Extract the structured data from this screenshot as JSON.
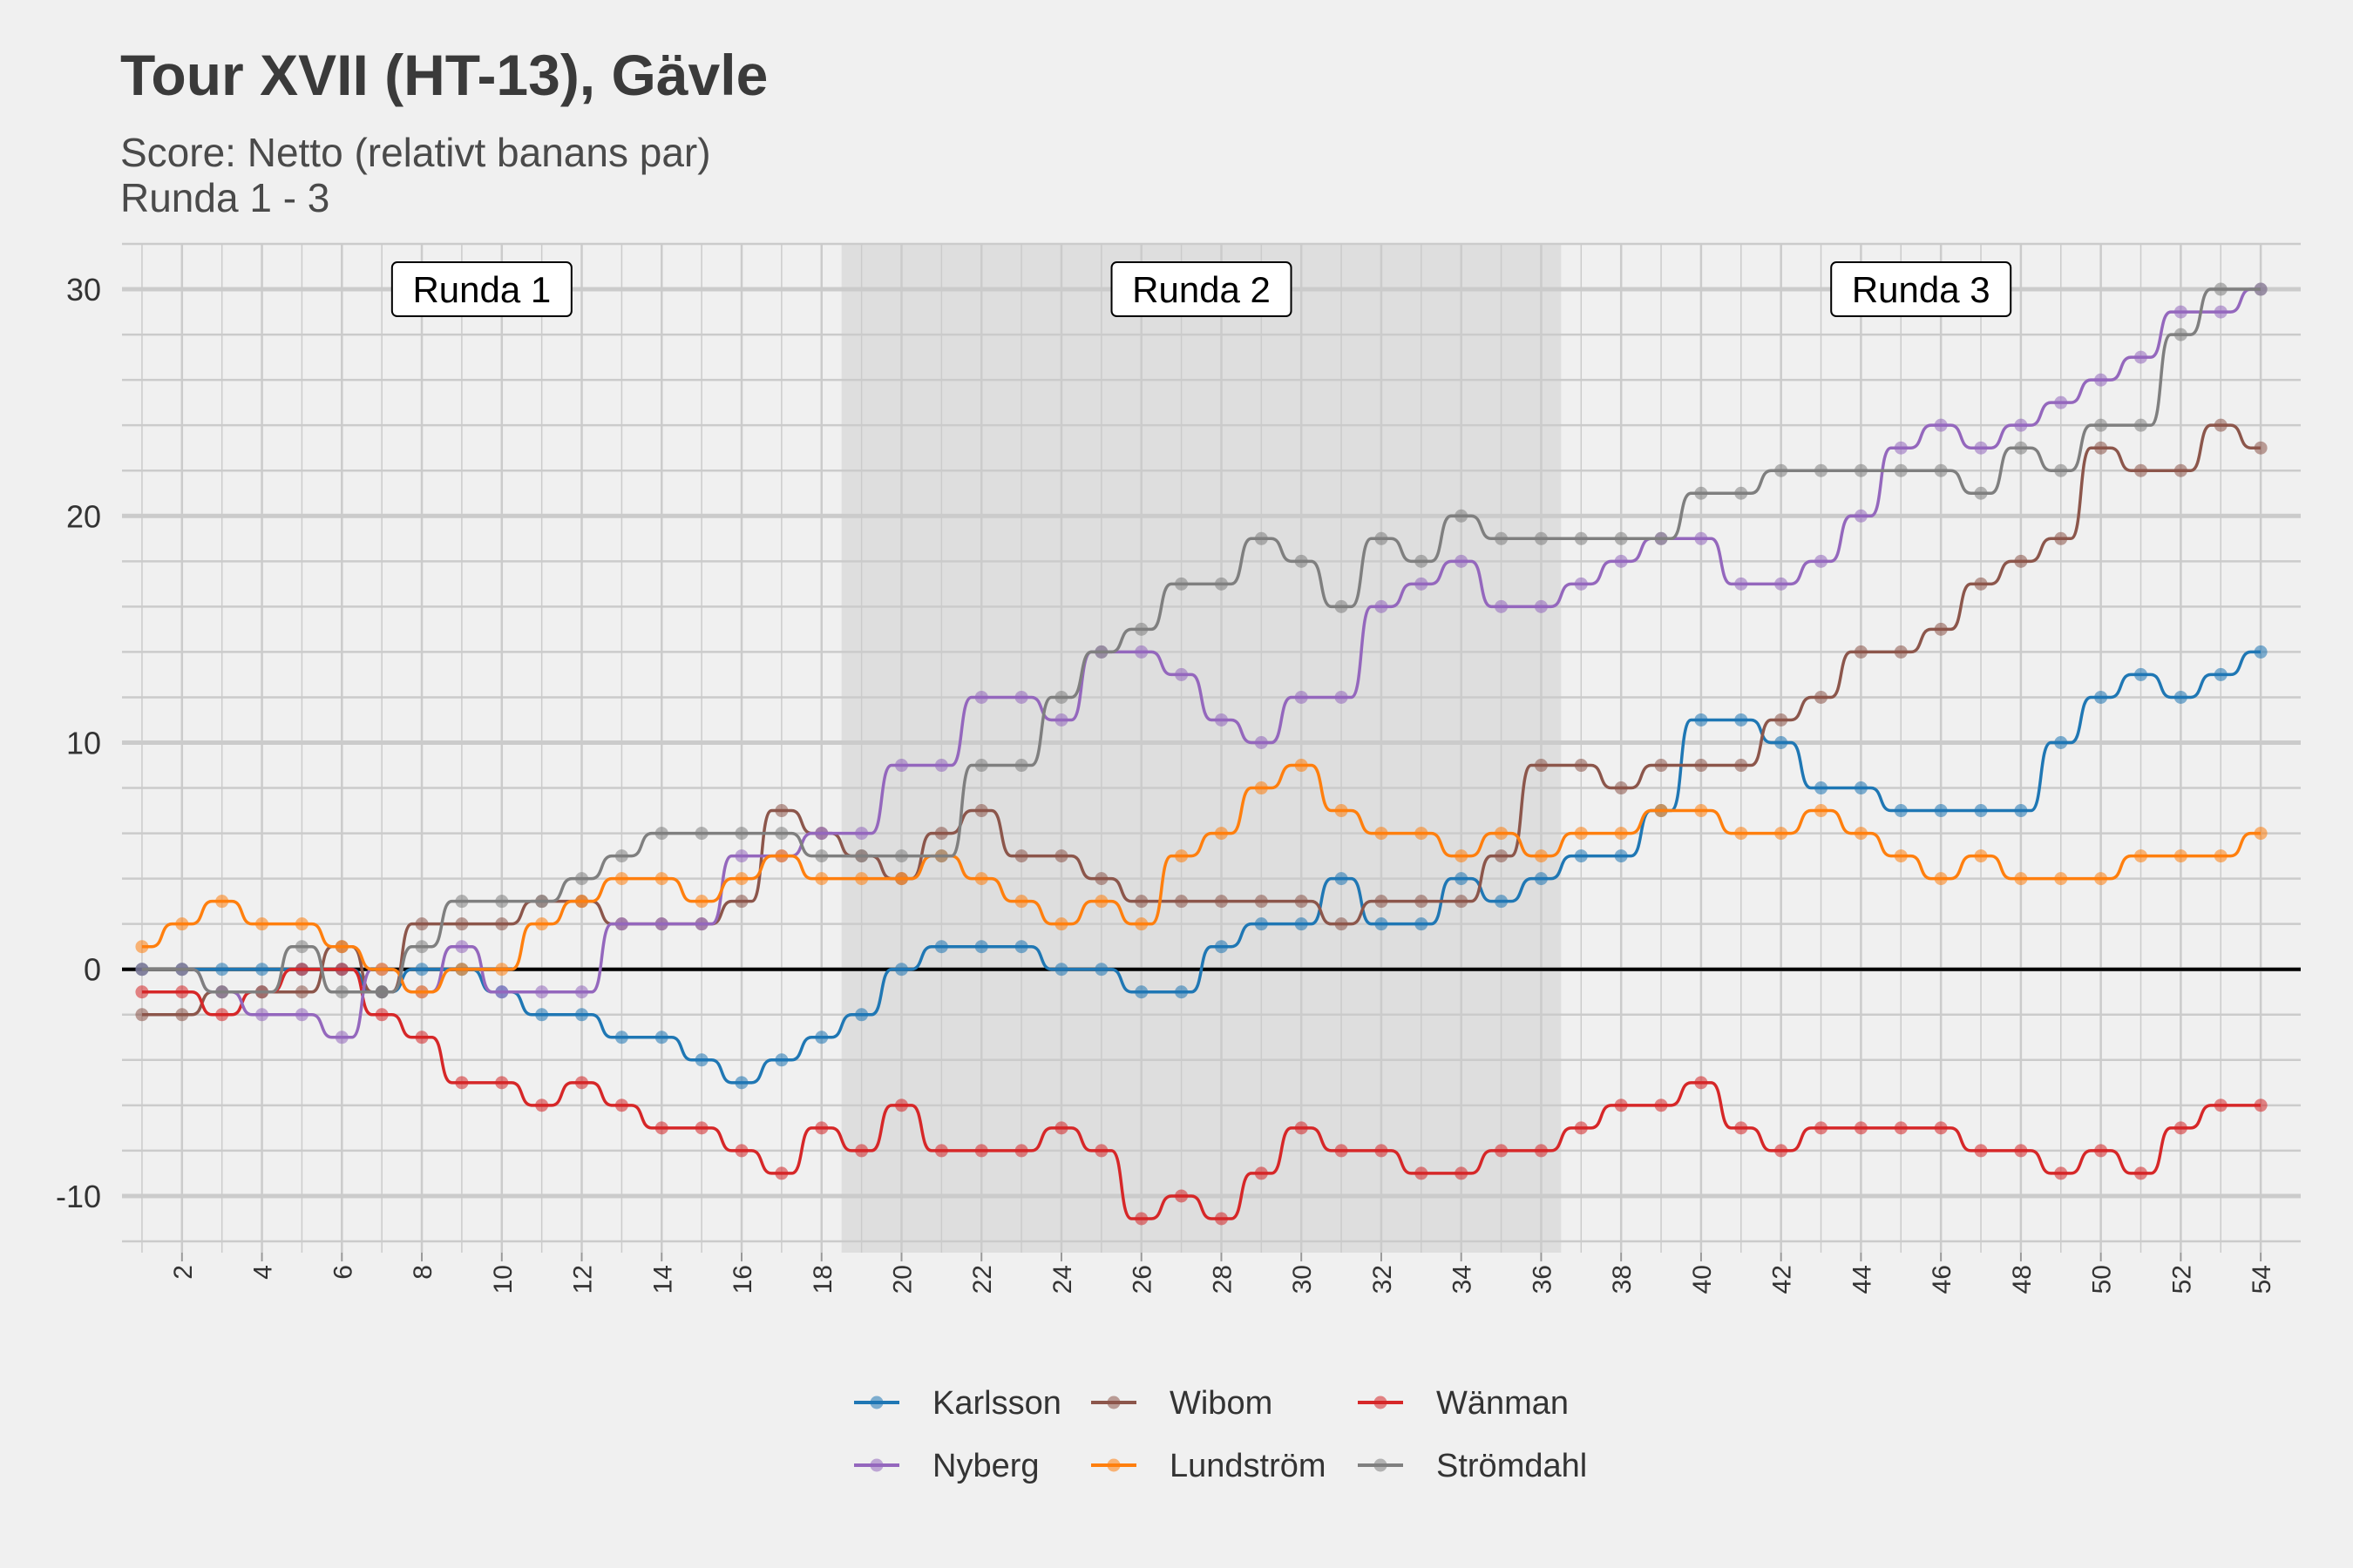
{
  "title": "Tour XVII (HT-13), Gävle",
  "subtitle_line1": "Score: Netto (relativt banans par)",
  "subtitle_line2": "Runda 1 - 3",
  "chart_data": {
    "type": "line",
    "title": "Tour XVII (HT-13), Gävle",
    "subtitle": "Score: Netto (relativt banans par) / Runda 1 - 3",
    "xlabel": "",
    "ylabel": "",
    "xlim": [
      0.5,
      55
    ],
    "ylim": [
      -12.5,
      32
    ],
    "x": [
      1,
      2,
      3,
      4,
      5,
      6,
      7,
      8,
      9,
      10,
      11,
      12,
      13,
      14,
      15,
      16,
      17,
      18,
      19,
      20,
      21,
      22,
      23,
      24,
      25,
      26,
      27,
      28,
      29,
      30,
      31,
      32,
      33,
      34,
      35,
      36,
      37,
      38,
      39,
      40,
      41,
      42,
      43,
      44,
      45,
      46,
      47,
      48,
      49,
      50,
      51,
      52,
      53,
      54
    ],
    "x_ticks": [
      2,
      4,
      6,
      8,
      10,
      12,
      14,
      16,
      18,
      20,
      22,
      24,
      26,
      28,
      30,
      32,
      34,
      36,
      38,
      40,
      42,
      44,
      46,
      48,
      50,
      52,
      54
    ],
    "y_ticks": [
      -10,
      0,
      10,
      20,
      30
    ],
    "rounds": [
      {
        "label": "Runda 1",
        "from": 0.5,
        "to": 18.5,
        "shaded": false
      },
      {
        "label": "Runda 2",
        "from": 18.5,
        "to": 36.5,
        "shaded": true
      },
      {
        "label": "Runda 3",
        "from": 36.5,
        "to": 55,
        "shaded": false
      }
    ],
    "zero_line": true,
    "grid": true,
    "legend_position": "bottom",
    "series": [
      {
        "name": "Karlsson",
        "color": "#1f77b4",
        "values": [
          0,
          0,
          0,
          0,
          0,
          0,
          -1,
          0,
          0,
          -1,
          -2,
          -2,
          -3,
          -3,
          -4,
          -5,
          -4,
          -3,
          -2,
          0,
          1,
          1,
          1,
          0,
          0,
          -1,
          -1,
          1,
          2,
          2,
          4,
          2,
          2,
          4,
          3,
          4,
          5,
          5,
          7,
          11,
          11,
          10,
          8,
          8,
          7,
          7,
          7,
          7,
          10,
          12,
          13,
          12,
          13,
          14
        ]
      },
      {
        "name": "Wibom",
        "color": "#8c564b",
        "values": [
          -2,
          -2,
          -1,
          -1,
          -1,
          1,
          -1,
          2,
          2,
          2,
          3,
          3,
          2,
          2,
          2,
          3,
          7,
          6,
          5,
          4,
          6,
          7,
          5,
          5,
          4,
          3,
          3,
          3,
          3,
          3,
          2,
          3,
          3,
          3,
          5,
          9,
          9,
          8,
          9,
          9,
          9,
          11,
          12,
          14,
          14,
          15,
          17,
          18,
          19,
          23,
          22,
          22,
          24,
          23
        ]
      },
      {
        "name": "Wänman",
        "color": "#d62728",
        "values": [
          -1,
          -1,
          -2,
          -1,
          0,
          0,
          -2,
          -3,
          -5,
          -5,
          -6,
          -5,
          -6,
          -7,
          -7,
          -8,
          -9,
          -7,
          -8,
          -6,
          -8,
          -8,
          -8,
          -7,
          -8,
          -11,
          -10,
          -11,
          -9,
          -7,
          -8,
          -8,
          -9,
          -9,
          -8,
          -8,
          -7,
          -6,
          -6,
          -5,
          -7,
          -8,
          -7,
          -7,
          -7,
          -7,
          -8,
          -8,
          -9,
          -8,
          -9,
          -7,
          -6,
          -6
        ]
      },
      {
        "name": "Nyberg",
        "color": "#9467bd",
        "values": [
          0,
          0,
          -1,
          -2,
          -2,
          -3,
          0,
          -1,
          1,
          -1,
          -1,
          -1,
          2,
          2,
          2,
          5,
          5,
          6,
          6,
          9,
          9,
          12,
          12,
          11,
          14,
          14,
          13,
          11,
          10,
          12,
          12,
          16,
          17,
          18,
          16,
          16,
          17,
          18,
          19,
          19,
          17,
          17,
          18,
          20,
          23,
          24,
          23,
          24,
          25,
          26,
          27,
          29,
          29,
          30
        ]
      },
      {
        "name": "Lundström",
        "color": "#ff7f0e",
        "values": [
          1,
          2,
          3,
          2,
          2,
          1,
          0,
          -1,
          0,
          0,
          2,
          3,
          4,
          4,
          3,
          4,
          5,
          4,
          4,
          4,
          5,
          4,
          3,
          2,
          3,
          2,
          5,
          6,
          8,
          9,
          7,
          6,
          6,
          5,
          6,
          5,
          6,
          6,
          7,
          7,
          6,
          6,
          7,
          6,
          5,
          4,
          5,
          4,
          4,
          4,
          5,
          5,
          5,
          6
        ]
      },
      {
        "name": "Strömdahl",
        "color": "#7f7f7f",
        "values": [
          0,
          0,
          -1,
          -1,
          1,
          -1,
          -1,
          1,
          3,
          3,
          3,
          4,
          5,
          6,
          6,
          6,
          6,
          5,
          5,
          5,
          5,
          9,
          9,
          12,
          14,
          15,
          17,
          17,
          19,
          18,
          16,
          19,
          18,
          20,
          19,
          19,
          19,
          19,
          19,
          21,
          21,
          22,
          22,
          22,
          22,
          22,
          21,
          23,
          22,
          24,
          24,
          28,
          30,
          30
        ]
      }
    ]
  }
}
